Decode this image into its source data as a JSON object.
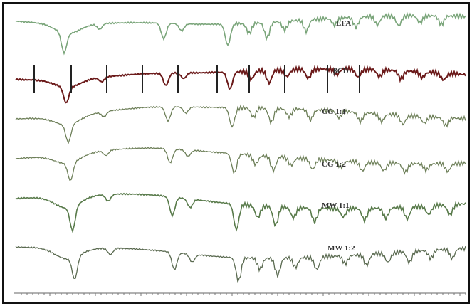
{
  "spectra": {
    "labels": [
      "EFA",
      "βCD",
      "CG 1:1",
      "CG 1:2",
      "MW 1:1",
      "MW 1:2"
    ]
  }
}
